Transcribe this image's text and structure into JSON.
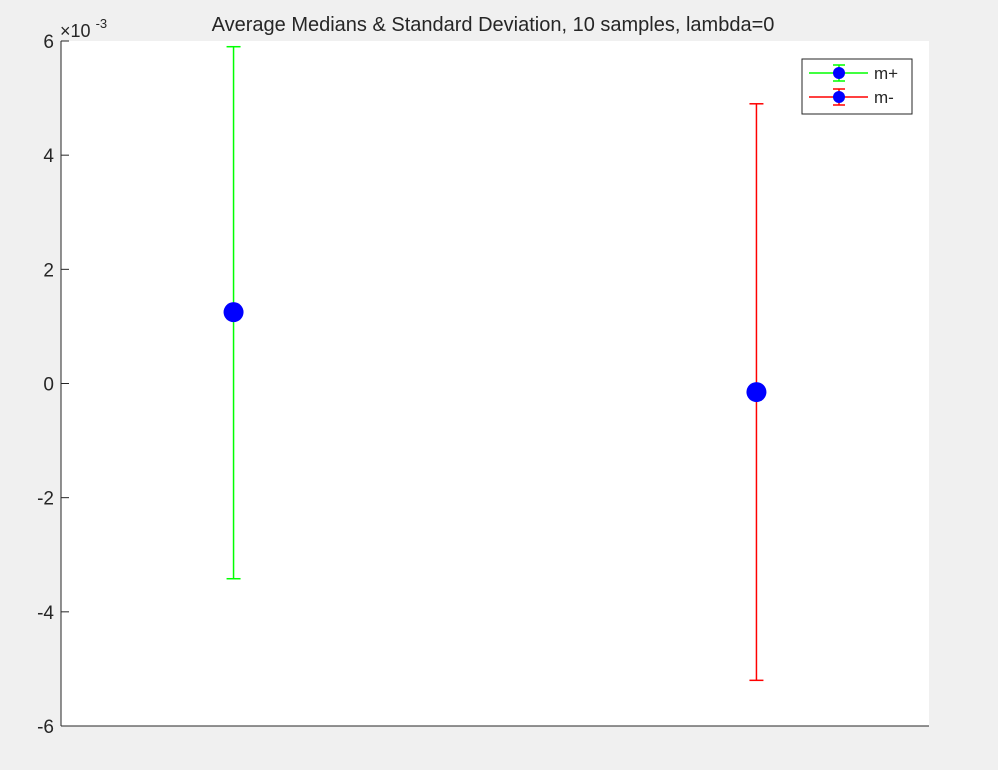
{
  "chart_data": {
    "type": "errorbar",
    "title": "Average Medians & Standard Deviation, 10 samples, lambda=0",
    "xlabel": "",
    "ylabel": "",
    "exponent_label": "×10",
    "exponent_power": "-3",
    "xlim": [
      0.67,
      2.33
    ],
    "ylim": [
      -6,
      6
    ],
    "yticks": [
      -6,
      -4,
      -2,
      0,
      2,
      4,
      6
    ],
    "ytick_labels": [
      "-6",
      "-4",
      "-2",
      "0",
      "2",
      "4",
      "6"
    ],
    "grid": false,
    "legend_position": "top-right",
    "series": [
      {
        "name": "m+",
        "x": [
          1
        ],
        "y": [
          1.25
        ],
        "lower": [
          -3.42
        ],
        "upper": [
          5.9
        ],
        "bar_color": "#00ff00",
        "marker_color": "#0000ff"
      },
      {
        "name": "m-",
        "x": [
          2
        ],
        "y": [
          -0.15
        ],
        "lower": [
          -5.2
        ],
        "upper": [
          4.9
        ],
        "bar_color": "#ff0000",
        "marker_color": "#0000ff"
      }
    ]
  }
}
